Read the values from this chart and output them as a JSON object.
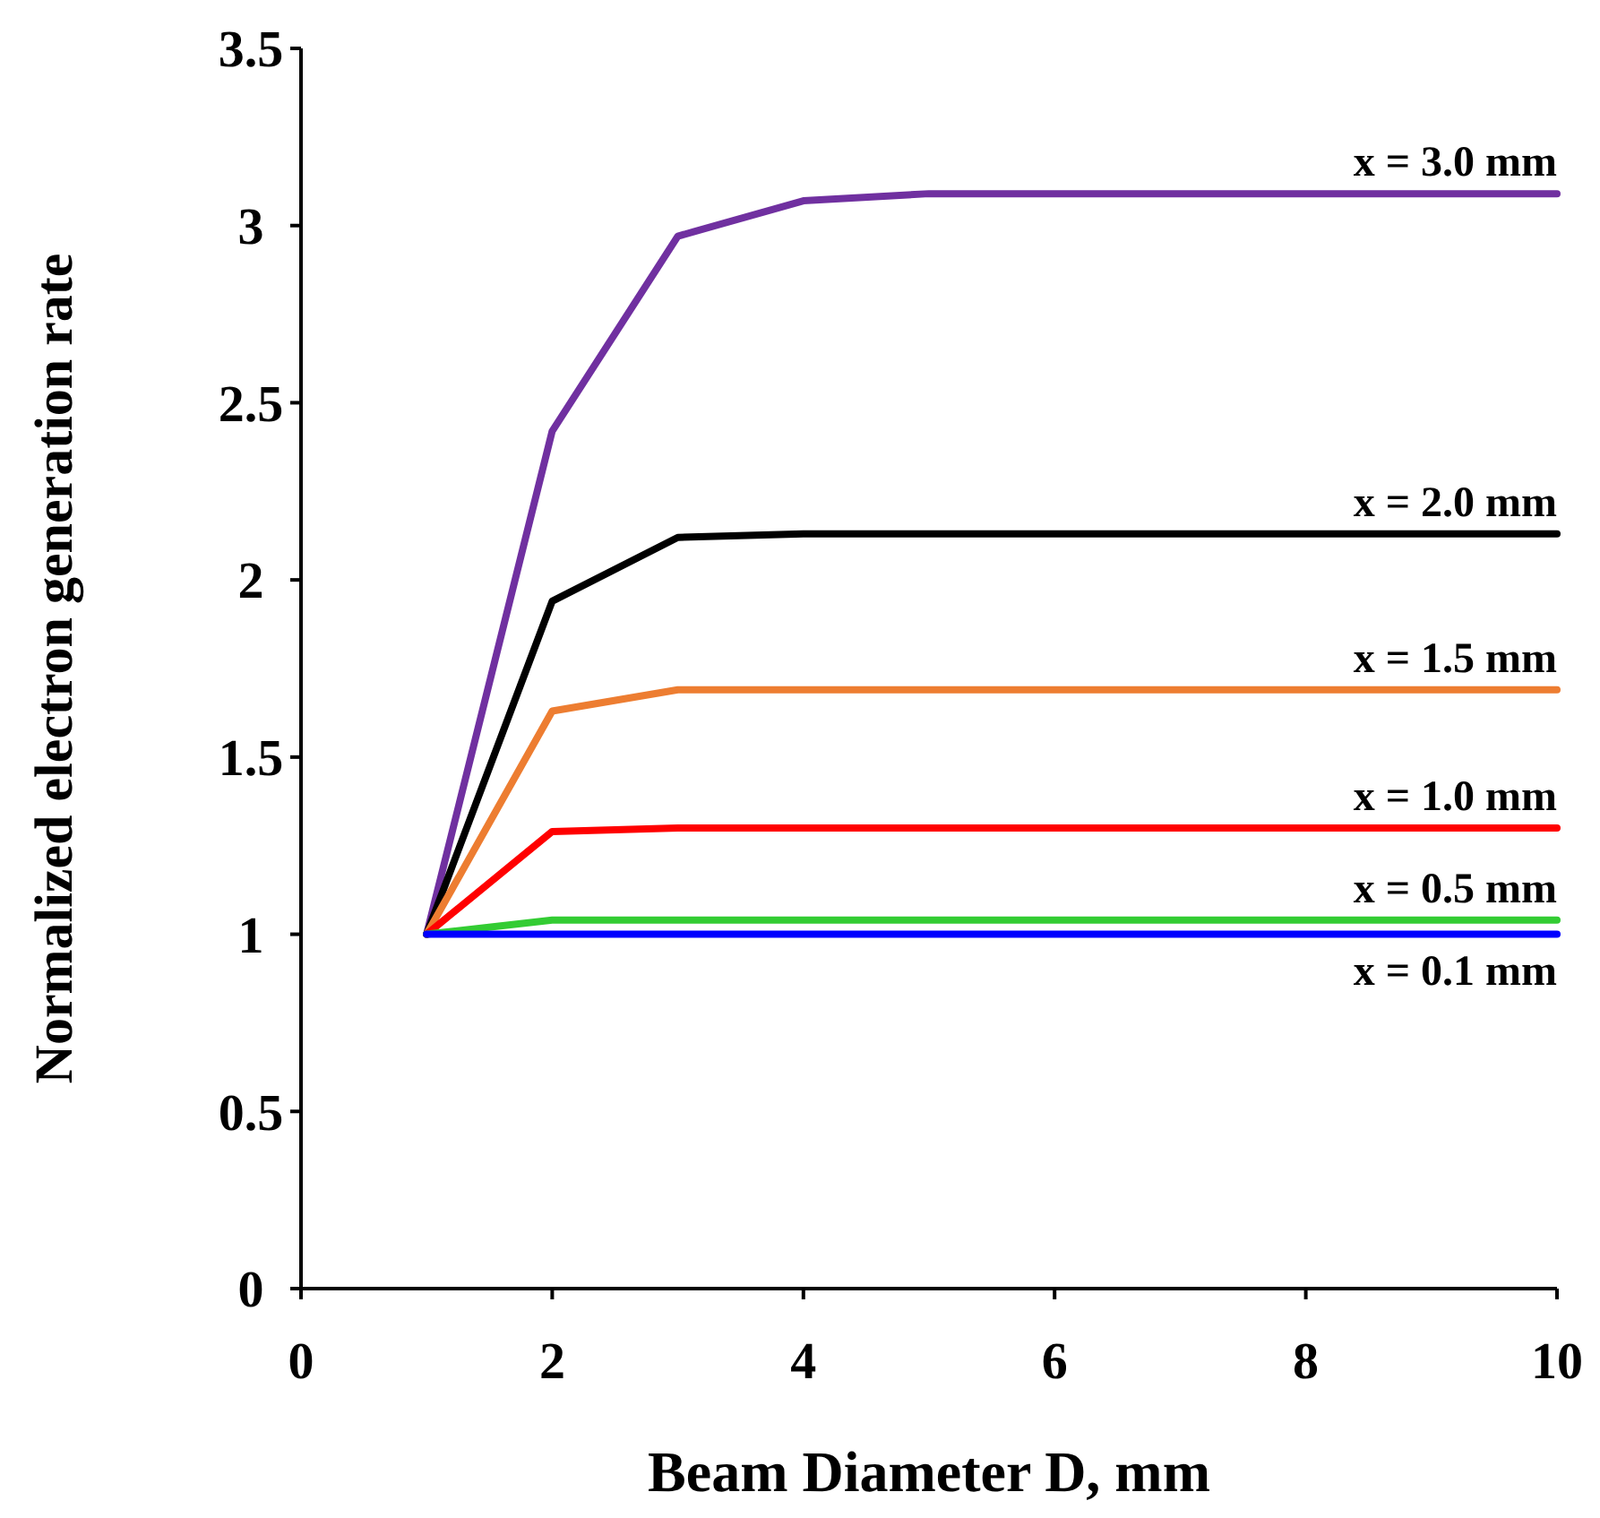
{
  "chart_data": {
    "type": "line",
    "xlabel": "Beam Diameter D, mm",
    "ylabel": "Normalized electron generation rate",
    "xlim": [
      0,
      10
    ],
    "xticks": [
      0,
      2,
      4,
      6,
      8,
      10
    ],
    "ylim": [
      0,
      3.5
    ],
    "yticks": [
      0,
      0.5,
      1,
      1.5,
      2,
      2.5,
      3,
      3.5
    ],
    "marker": "none",
    "line_style": "solid",
    "x": [
      1,
      2,
      3,
      4,
      5,
      10
    ],
    "series": [
      {
        "name": "x = 3.0 mm",
        "color": "#7030a0",
        "values": [
          1,
          2.42,
          2.97,
          3.07,
          3.09,
          3.09
        ]
      },
      {
        "name": "x = 2.0 mm",
        "color": "#000000",
        "values": [
          1,
          1.94,
          2.12,
          2.13,
          2.13,
          2.13
        ]
      },
      {
        "name": "x = 1.5 mm",
        "color": "#ed7d31",
        "values": [
          1,
          1.63,
          1.69,
          1.69,
          1.69,
          1.69
        ]
      },
      {
        "name": "x = 1.0 mm",
        "color": "#ff0000",
        "values": [
          1,
          1.29,
          1.3,
          1.3,
          1.3,
          1.3
        ]
      },
      {
        "name": "x = 0.5 mm",
        "color": "#33cc33",
        "values": [
          1,
          1.04,
          1.04,
          1.04,
          1.04,
          1.04
        ]
      },
      {
        "name": "x = 0.1 mm",
        "color": "#0000ff",
        "values": [
          1,
          1,
          1,
          1,
          1,
          1
        ]
      }
    ]
  }
}
